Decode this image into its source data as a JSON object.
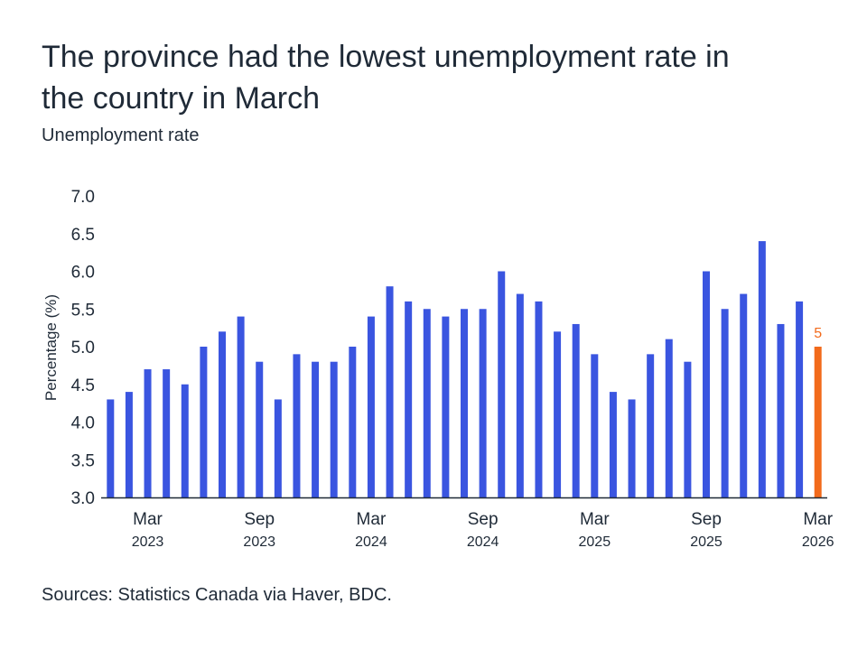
{
  "chart_data": {
    "type": "bar",
    "title": "The province had the lowest unemployment rate in the country in March",
    "subtitle": "Unemployment rate",
    "ylabel": "Percentage (%)",
    "ylim": [
      3.0,
      7.0
    ],
    "yticks": [
      "3.0",
      "3.5",
      "4.0",
      "4.5",
      "5.0",
      "5.5",
      "6.0",
      "6.5",
      "7.0"
    ],
    "ytick_values": [
      3.0,
      3.5,
      4.0,
      4.5,
      5.0,
      5.5,
      6.0,
      6.5,
      7.0
    ],
    "categories": [
      "Jan 2023",
      "Feb 2023",
      "Mar 2023",
      "Apr 2023",
      "May 2023",
      "Jun 2023",
      "Jul 2023",
      "Aug 2023",
      "Sep 2023",
      "Oct 2023",
      "Nov 2023",
      "Dec 2023",
      "Jan 2024",
      "Feb 2024",
      "Mar 2024",
      "Apr 2024",
      "May 2024",
      "Jun 2024",
      "Jul 2024",
      "Aug 2024",
      "Sep 2024",
      "Oct 2024",
      "Nov 2024",
      "Dec 2024",
      "Jan 2025",
      "Feb 2025",
      "Mar 2025",
      "Apr 2025",
      "May 2025",
      "Jun 2025",
      "Jul 2025",
      "Aug 2025",
      "Sep 2025",
      "Oct 2025",
      "Nov 2025",
      "Dec 2025",
      "Jan 2026",
      "Feb 2026",
      "Mar 2026"
    ],
    "values": [
      4.3,
      4.4,
      4.7,
      4.7,
      4.5,
      5.0,
      5.2,
      5.4,
      4.8,
      4.3,
      4.9,
      4.8,
      4.8,
      5.0,
      5.4,
      5.8,
      5.6,
      5.5,
      5.4,
      5.5,
      5.5,
      6.0,
      5.7,
      5.6,
      5.2,
      5.3,
      4.9,
      4.4,
      4.3,
      4.9,
      5.1,
      4.8,
      6.0,
      5.5,
      5.7,
      6.4,
      5.3,
      5.6,
      5.0
    ],
    "highlight_index": 38,
    "highlight_label": "5",
    "xtick_labels": [
      {
        "index": 2,
        "month": "Mar",
        "year": "2023"
      },
      {
        "index": 8,
        "month": "Sep",
        "year": "2023"
      },
      {
        "index": 14,
        "month": "Mar",
        "year": "2024"
      },
      {
        "index": 20,
        "month": "Sep",
        "year": "2024"
      },
      {
        "index": 26,
        "month": "Mar",
        "year": "2025"
      },
      {
        "index": 32,
        "month": "Sep",
        "year": "2025"
      },
      {
        "index": 38,
        "month": "Mar",
        "year": "2026"
      }
    ],
    "colors": {
      "bar": "#3a55e0",
      "highlight": "#f26a1b",
      "axis": "#1f2a37"
    },
    "grid": false,
    "legend": "none"
  },
  "source": "Sources: Statistics Canada via Haver, BDC."
}
